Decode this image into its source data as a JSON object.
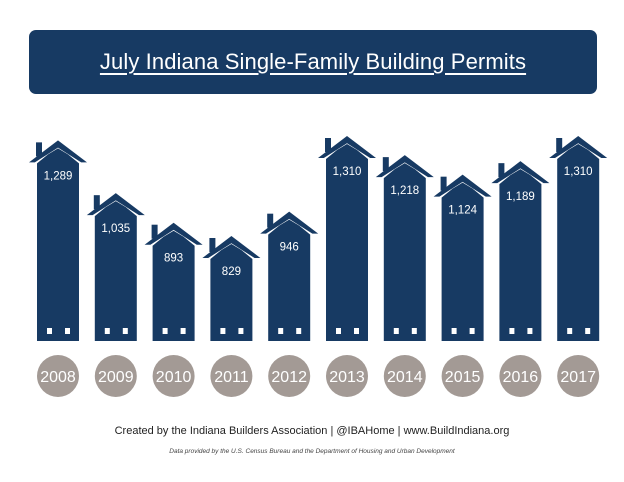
{
  "title": "July Indiana Single-Family Building Permits",
  "footer": {
    "credit": "Created by the Indiana Builders Association | @IBAHome | www.BuildIndiana.org",
    "source": "Data provided by the U.S. Census Bureau and the Department of Housing and Urban Development"
  },
  "colors": {
    "house": "#173a63",
    "year_circle": "#a39a95",
    "label_text": "#ffffff",
    "background": "#ffffff"
  },
  "chart_data": {
    "type": "bar",
    "title": "July Indiana Single-Family Building Permits",
    "categories": [
      "2008",
      "2009",
      "2010",
      "2011",
      "2012",
      "2013",
      "2014",
      "2015",
      "2016",
      "2017"
    ],
    "values": [
      1289,
      1035,
      893,
      829,
      946,
      1310,
      1218,
      1124,
      1189,
      1310
    ],
    "value_labels": [
      "1,289",
      "1,035",
      "893",
      "829",
      "946",
      "1,310",
      "1,218",
      "1,124",
      "1,189",
      "1,310"
    ],
    "xlabel": "",
    "ylabel": "",
    "grid": false,
    "legend": "none"
  }
}
